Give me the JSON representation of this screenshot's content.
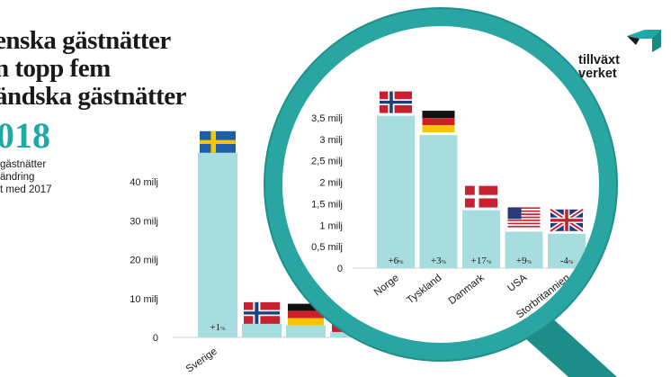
{
  "title": {
    "lines": [
      "enska gästnätter",
      "n topp fem",
      "ändska gästnätter"
    ],
    "year": "018"
  },
  "legend": {
    "lines": [
      "gästnätter",
      "ändring",
      "t med 2017"
    ]
  },
  "logo": {
    "lines": [
      "tillväxt",
      "verket"
    ]
  },
  "colors": {
    "bar": "#a8dde0",
    "teal": "#1fa8a8",
    "lens_rim": "#28a39f",
    "text": "#1a1a1a"
  },
  "chart_data": [
    {
      "type": "bar",
      "categories": [
        "Sverige",
        "Norge",
        "Tyskland",
        "Danmark",
        "USA",
        "Storbritannien"
      ],
      "values": [
        47.5,
        3.5,
        3.1,
        1.4,
        0.8,
        0.8
      ],
      "changes": [
        "+1",
        "",
        "",
        "",
        "",
        ""
      ],
      "ylim": [
        0,
        50
      ],
      "yticks": [
        0,
        10,
        20,
        30,
        40
      ],
      "ytick_labels": [
        "0",
        "10 milj",
        "20 milj",
        "30 milj",
        "40 milj"
      ],
      "flags": [
        "sweden-flag",
        "norway-flag",
        "germany-flag",
        "denmark-flag",
        "usa-flag",
        "uk-flag"
      ]
    },
    {
      "type": "bar",
      "categories": [
        "Norge",
        "Tyskland",
        "Danmark",
        "USA",
        "Storbritannien"
      ],
      "values": [
        3.55,
        3.1,
        1.35,
        0.85,
        0.8
      ],
      "changes": [
        "+6",
        "+3",
        "+17",
        "+9",
        "-4"
      ],
      "ylim": [
        0,
        3.5
      ],
      "yticks": [
        0,
        0.5,
        1,
        1.5,
        2,
        2.5,
        3,
        3.5
      ],
      "ytick_labels": [
        "0",
        "0,5 milj",
        "1 milj",
        "1,5 milj",
        "2 milj",
        "2,5 milj",
        "3 milj",
        "3,5 milj"
      ],
      "flags": [
        "norway-flag",
        "germany-flag",
        "denmark-flag",
        "usa-flag",
        "uk-flag"
      ]
    }
  ],
  "pct_sign": "%"
}
